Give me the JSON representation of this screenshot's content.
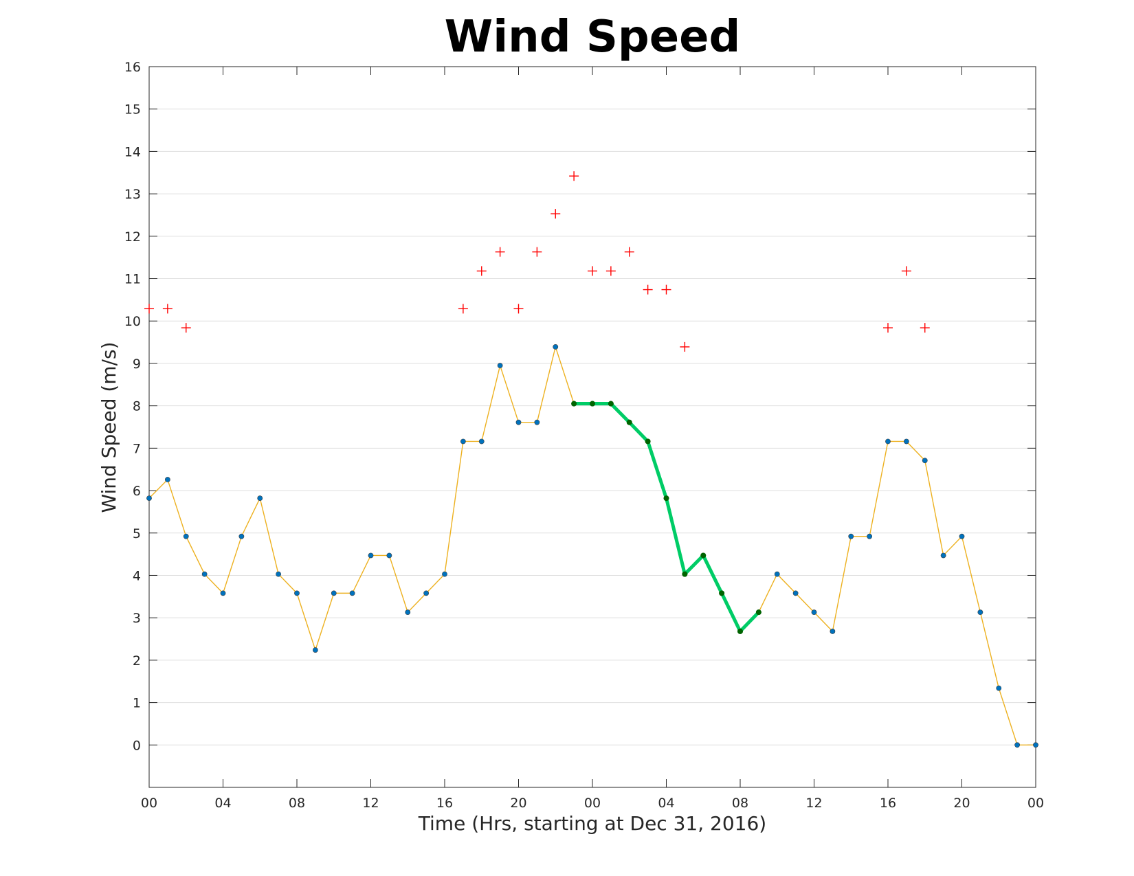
{
  "chart_data": {
    "type": "line",
    "title": "Wind Speed",
    "xlabel": "Time (Hrs, starting at Dec 31, 2016)",
    "ylabel": "Wind Speed (m/s)",
    "x_unit": "hours",
    "xlim": [
      0,
      48
    ],
    "ylim": [
      -1,
      16
    ],
    "yticks": [
      0,
      1,
      2,
      3,
      4,
      5,
      6,
      7,
      8,
      9,
      10,
      11,
      12,
      13,
      14,
      15,
      16
    ],
    "xticks": [
      0,
      4,
      8,
      12,
      16,
      20,
      24,
      28,
      32,
      36,
      40,
      44,
      48
    ],
    "xtick_labels": [
      "00",
      "04",
      "08",
      "12",
      "16",
      "20",
      "00",
      "04",
      "08",
      "12",
      "16",
      "20",
      "00"
    ],
    "grid": "horizontal",
    "series": [
      {
        "kind": "line-markers",
        "color": "#EDB120",
        "marker_color": "#0072BD",
        "x": [
          0,
          1,
          2,
          3,
          4,
          5,
          6,
          7,
          8,
          9,
          10,
          11,
          12,
          13,
          14,
          15,
          16,
          17,
          18,
          19,
          20,
          21,
          22,
          23,
          24,
          25,
          26,
          27,
          28,
          29,
          30,
          31,
          32,
          33,
          34,
          35,
          36,
          37,
          38,
          39,
          40,
          41,
          42,
          43,
          44,
          45,
          46,
          47,
          48
        ],
        "values": [
          5.82,
          6.26,
          4.92,
          4.03,
          3.58,
          4.92,
          5.82,
          4.03,
          3.58,
          2.24,
          3.58,
          3.58,
          4.47,
          4.47,
          3.13,
          3.58,
          4.03,
          7.16,
          7.16,
          8.95,
          7.61,
          7.61,
          9.39,
          8.05,
          8.05,
          8.05,
          7.61,
          7.16,
          5.82,
          4.03,
          4.47,
          3.58,
          2.68,
          3.13,
          4.03,
          3.58,
          3.13,
          2.68,
          4.92,
          4.92,
          7.16,
          7.16,
          6.71,
          4.47,
          4.92,
          3.13,
          1.34,
          0.0,
          0.0
        ]
      },
      {
        "kind": "highlight",
        "color": "#00CC66",
        "marker_color": "#006400",
        "x": [
          23,
          24,
          25,
          26,
          27,
          28,
          29,
          30,
          31,
          32,
          33
        ],
        "values": [
          8.05,
          8.05,
          8.05,
          7.61,
          7.16,
          5.82,
          4.03,
          4.47,
          3.58,
          2.68,
          3.13
        ]
      },
      {
        "kind": "markers-plus",
        "color": "#FF0000",
        "x": [
          0,
          1,
          2,
          17,
          18,
          19,
          20,
          21,
          22,
          23,
          24,
          25,
          26,
          27,
          28,
          29,
          40,
          41,
          42
        ],
        "values": [
          10.29,
          10.29,
          9.84,
          10.29,
          11.18,
          11.63,
          10.29,
          11.63,
          12.53,
          13.42,
          11.18,
          11.18,
          11.63,
          10.74,
          10.74,
          9.39,
          9.84,
          11.18,
          9.84
        ]
      }
    ]
  }
}
